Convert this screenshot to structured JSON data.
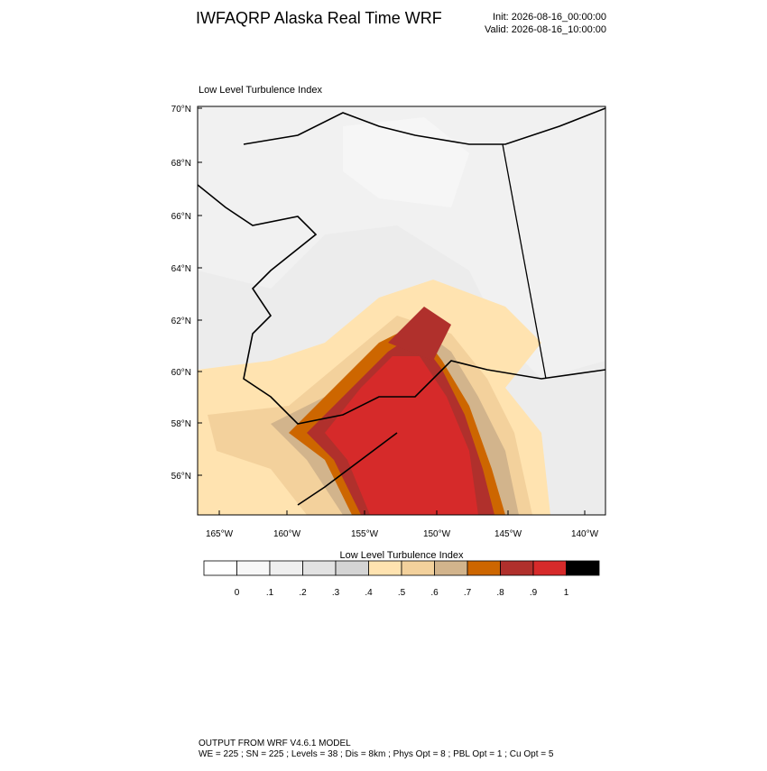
{
  "header": {
    "title": "IWFAQRP Alaska Real Time WRF",
    "init": "Init: 2026-08-16_00:00:00",
    "valid": "Valid: 2026-08-16_10:00:00"
  },
  "map": {
    "subtitle": "Low Level Turbulence Index",
    "lat_labels": [
      "70°N",
      "68°N",
      "66°N",
      "64°N",
      "62°N",
      "60°N",
      "58°N",
      "56°N"
    ],
    "lon_labels": [
      "165°W",
      "160°W",
      "155°W",
      "150°W",
      "145°W",
      "140°W"
    ]
  },
  "colorbar": {
    "title": "Low Level Turbulence Index",
    "colors": [
      "#ffffff",
      "#f7f7f7",
      "#efefef",
      "#e2e2e2",
      "#d4d4d4",
      "#ffe3b0",
      "#f3d19c",
      "#d2b48c",
      "#cd6600",
      "#b0302c",
      "#d62a2a",
      "#000000"
    ],
    "labels": [
      "0",
      ".1",
      ".2",
      ".3",
      ".4",
      ".5",
      ".6",
      ".7",
      ".8",
      ".9",
      "1"
    ]
  },
  "footer": {
    "line1": "OUTPUT FROM WRF V4.6.1 MODEL",
    "line2": "WE = 225 ; SN = 225 ; Levels = 38 ; Dis = 8km ; Phys Opt = 8 ; PBL Opt = 1 ; Cu Opt = 5"
  }
}
